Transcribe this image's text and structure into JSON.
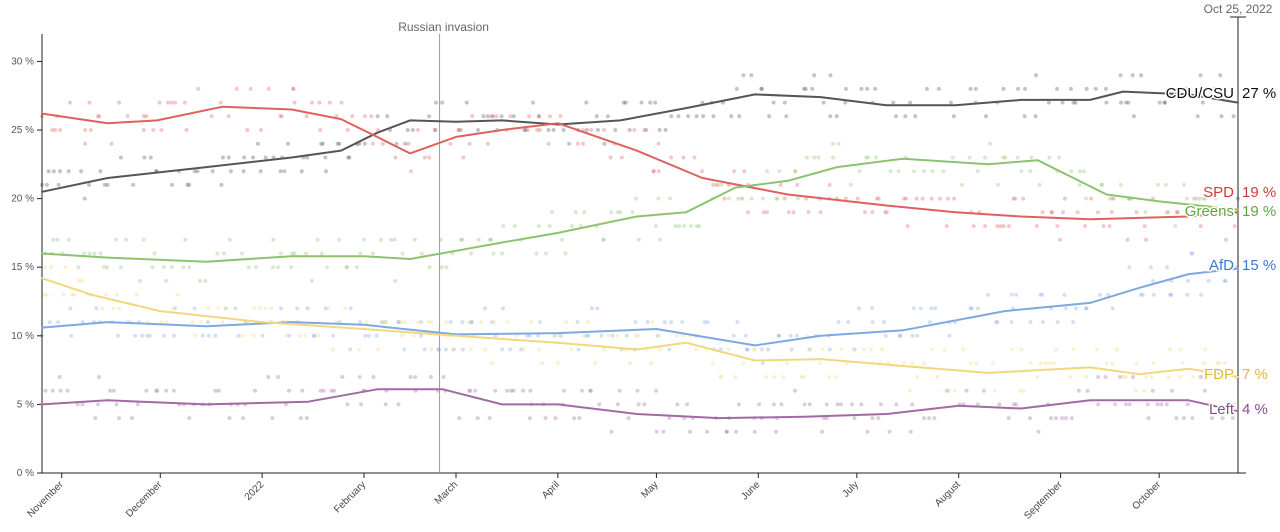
{
  "chart_data": {
    "type": "line",
    "title": "",
    "xlabel": "",
    "ylabel": "",
    "ylim": [
      0,
      32
    ],
    "xlim": [
      "2021-10-26",
      "2022-10-25"
    ],
    "y_ticks": [
      0,
      5,
      10,
      15,
      20,
      25,
      30
    ],
    "y_tick_labels": [
      "0 %",
      "5 %",
      "10 %",
      "15 %",
      "20 %",
      "25 %",
      "30 %"
    ],
    "x_ticks": [
      {
        "label": "November",
        "date": "2021-11-01"
      },
      {
        "label": "December",
        "date": "2021-12-01"
      },
      {
        "label": "2022",
        "date": "2022-01-01"
      },
      {
        "label": "February",
        "date": "2022-02-01"
      },
      {
        "label": "March",
        "date": "2022-03-01"
      },
      {
        "label": "April",
        "date": "2022-04-01"
      },
      {
        "label": "May",
        "date": "2022-05-01"
      },
      {
        "label": "June",
        "date": "2022-06-01"
      },
      {
        "label": "July",
        "date": "2022-07-01"
      },
      {
        "label": "August",
        "date": "2022-08-01"
      },
      {
        "label": "September",
        "date": "2022-09-01"
      },
      {
        "label": "October",
        "date": "2022-10-01"
      }
    ],
    "grid": false,
    "annotations": [
      {
        "label": "Russian invasion",
        "date": "2022-02-24"
      },
      {
        "label": "Oct 25, 2022",
        "date": "2022-10-25"
      }
    ],
    "series": [
      {
        "name": "CDU/CSU",
        "value_label": "27 %",
        "color": "#555555",
        "label_color": "#111111",
        "points": [
          [
            "2021-10-26",
            20.5
          ],
          [
            "2021-11-15",
            21.5
          ],
          [
            "2021-12-15",
            22.3
          ],
          [
            "2022-01-10",
            23.0
          ],
          [
            "2022-01-25",
            23.5
          ],
          [
            "2022-02-05",
            24.8
          ],
          [
            "2022-02-15",
            25.7
          ],
          [
            "2022-03-01",
            25.6
          ],
          [
            "2022-03-15",
            25.7
          ],
          [
            "2022-04-01",
            25.4
          ],
          [
            "2022-04-20",
            25.7
          ],
          [
            "2022-05-10",
            26.6
          ],
          [
            "2022-05-31",
            27.6
          ],
          [
            "2022-06-20",
            27.4
          ],
          [
            "2022-07-10",
            26.8
          ],
          [
            "2022-07-31",
            26.8
          ],
          [
            "2022-08-20",
            27.2
          ],
          [
            "2022-09-10",
            27.2
          ],
          [
            "2022-09-20",
            27.8
          ],
          [
            "2022-10-10",
            27.6
          ],
          [
            "2022-10-25",
            27.0
          ]
        ]
      },
      {
        "name": "SPD",
        "value_label": "19 %",
        "color": "#e06060",
        "label_color": "#d33b3b",
        "points": [
          [
            "2021-10-26",
            26.2
          ],
          [
            "2021-11-15",
            25.5
          ],
          [
            "2021-11-30",
            25.7
          ],
          [
            "2021-12-20",
            26.7
          ],
          [
            "2022-01-10",
            26.5
          ],
          [
            "2022-01-25",
            25.8
          ],
          [
            "2022-02-05",
            24.5
          ],
          [
            "2022-02-15",
            23.3
          ],
          [
            "2022-03-01",
            24.5
          ],
          [
            "2022-03-15",
            25.0
          ],
          [
            "2022-04-01",
            25.5
          ],
          [
            "2022-04-25",
            23.5
          ],
          [
            "2022-05-15",
            21.5
          ],
          [
            "2022-06-10",
            20.3
          ],
          [
            "2022-07-10",
            19.5
          ],
          [
            "2022-07-31",
            19.0
          ],
          [
            "2022-08-20",
            18.7
          ],
          [
            "2022-09-10",
            18.5
          ],
          [
            "2022-10-10",
            18.7
          ],
          [
            "2022-10-25",
            19.0
          ]
        ]
      },
      {
        "name": "Greens",
        "value_label": "19 %",
        "color": "#8dc26f",
        "label_color": "#62a43f",
        "points": [
          [
            "2021-10-26",
            16.0
          ],
          [
            "2021-11-15",
            15.7
          ],
          [
            "2021-12-15",
            15.4
          ],
          [
            "2022-01-10",
            15.8
          ],
          [
            "2022-02-01",
            15.8
          ],
          [
            "2022-02-15",
            15.6
          ],
          [
            "2022-03-01",
            16.2
          ],
          [
            "2022-03-15",
            16.8
          ],
          [
            "2022-04-01",
            17.5
          ],
          [
            "2022-04-25",
            18.7
          ],
          [
            "2022-05-10",
            19.0
          ],
          [
            "2022-05-25",
            20.8
          ],
          [
            "2022-06-10",
            21.3
          ],
          [
            "2022-06-25",
            22.3
          ],
          [
            "2022-07-15",
            22.9
          ],
          [
            "2022-08-10",
            22.5
          ],
          [
            "2022-08-25",
            22.8
          ],
          [
            "2022-09-15",
            20.3
          ],
          [
            "2022-10-01",
            19.8
          ],
          [
            "2022-10-25",
            19.2
          ]
        ]
      },
      {
        "name": "AfD",
        "value_label": "15 %",
        "color": "#7fa8e0",
        "label_color": "#3d78cc",
        "points": [
          [
            "2021-10-26",
            10.6
          ],
          [
            "2021-11-15",
            11.0
          ],
          [
            "2021-12-15",
            10.7
          ],
          [
            "2022-01-10",
            11.0
          ],
          [
            "2022-02-01",
            10.8
          ],
          [
            "2022-03-01",
            10.1
          ],
          [
            "2022-04-01",
            10.2
          ],
          [
            "2022-05-01",
            10.5
          ],
          [
            "2022-05-31",
            9.3
          ],
          [
            "2022-06-20",
            10.0
          ],
          [
            "2022-07-15",
            10.4
          ],
          [
            "2022-08-15",
            11.8
          ],
          [
            "2022-09-10",
            12.4
          ],
          [
            "2022-09-25",
            13.5
          ],
          [
            "2022-10-10",
            14.5
          ],
          [
            "2022-10-25",
            14.9
          ]
        ]
      },
      {
        "name": "FDP",
        "value_label": "7 %",
        "color": "#f2d77e",
        "label_color": "#e0b83b",
        "points": [
          [
            "2021-10-26",
            14.2
          ],
          [
            "2021-11-10",
            13.0
          ],
          [
            "2021-12-01",
            11.8
          ],
          [
            "2022-01-01",
            11.0
          ],
          [
            "2022-02-01",
            10.5
          ],
          [
            "2022-03-01",
            10.0
          ],
          [
            "2022-04-01",
            9.5
          ],
          [
            "2022-04-25",
            9.0
          ],
          [
            "2022-05-10",
            9.5
          ],
          [
            "2022-05-31",
            8.2
          ],
          [
            "2022-06-20",
            8.3
          ],
          [
            "2022-07-15",
            7.8
          ],
          [
            "2022-08-10",
            7.3
          ],
          [
            "2022-09-10",
            7.7
          ],
          [
            "2022-09-25",
            7.2
          ],
          [
            "2022-10-10",
            7.6
          ],
          [
            "2022-10-25",
            7.0
          ]
        ]
      },
      {
        "name": "Left",
        "value_label": "4 %",
        "color": "#a26aa5",
        "label_color": "#8c4b8f",
        "points": [
          [
            "2021-10-26",
            5.0
          ],
          [
            "2021-11-15",
            5.3
          ],
          [
            "2021-12-15",
            5.0
          ],
          [
            "2022-01-15",
            5.2
          ],
          [
            "2022-02-05",
            6.1
          ],
          [
            "2022-02-25",
            6.1
          ],
          [
            "2022-03-15",
            5.0
          ],
          [
            "2022-04-01",
            5.0
          ],
          [
            "2022-04-25",
            4.3
          ],
          [
            "2022-05-20",
            4.0
          ],
          [
            "2022-06-15",
            4.1
          ],
          [
            "2022-07-10",
            4.3
          ],
          [
            "2022-08-01",
            4.9
          ],
          [
            "2022-08-20",
            4.7
          ],
          [
            "2022-09-10",
            5.3
          ],
          [
            "2022-10-10",
            5.3
          ],
          [
            "2022-10-25",
            4.5
          ]
        ]
      }
    ]
  }
}
